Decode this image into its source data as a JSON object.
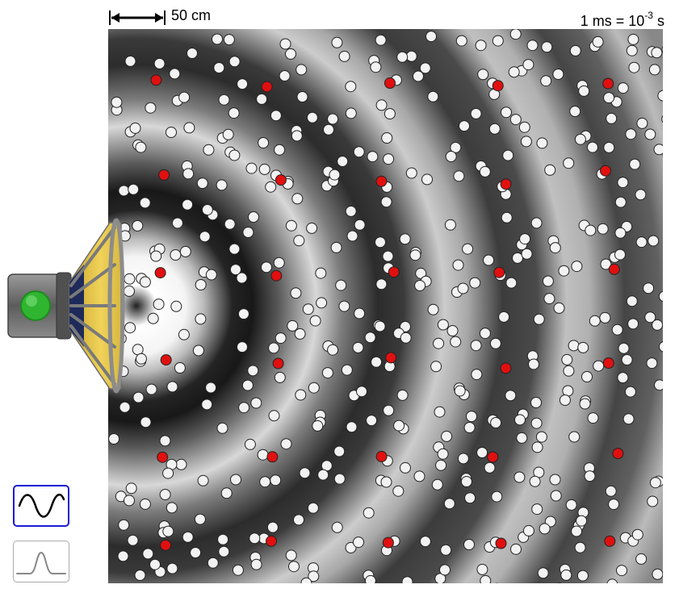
{
  "scale": {
    "label": "50 cm"
  },
  "time_scale": {
    "prefix": "1 ms = 10",
    "exponent": "-3",
    "suffix": " s"
  },
  "simulation": {
    "wave_type": "sine",
    "particle_colors": {
      "normal": "#f2f2f2",
      "tracked": "#e01010",
      "outline": "#222222"
    },
    "field_colors": {
      "dark": "#1a1a1a",
      "light": "#ffffff"
    }
  },
  "speaker": {
    "button_color": "#2fb52f",
    "cone_color": "#e6c640",
    "body_color": "#707070"
  },
  "wave_buttons": [
    {
      "name": "sine-wave-button",
      "icon": "sine-wave-icon",
      "selected": true,
      "stroke": "#000000",
      "border": "#1a1ad6"
    },
    {
      "name": "pulse-wave-button",
      "icon": "pulse-wave-icon",
      "selected": false,
      "stroke": "#888888",
      "border": "#aaaaaa"
    }
  ]
}
